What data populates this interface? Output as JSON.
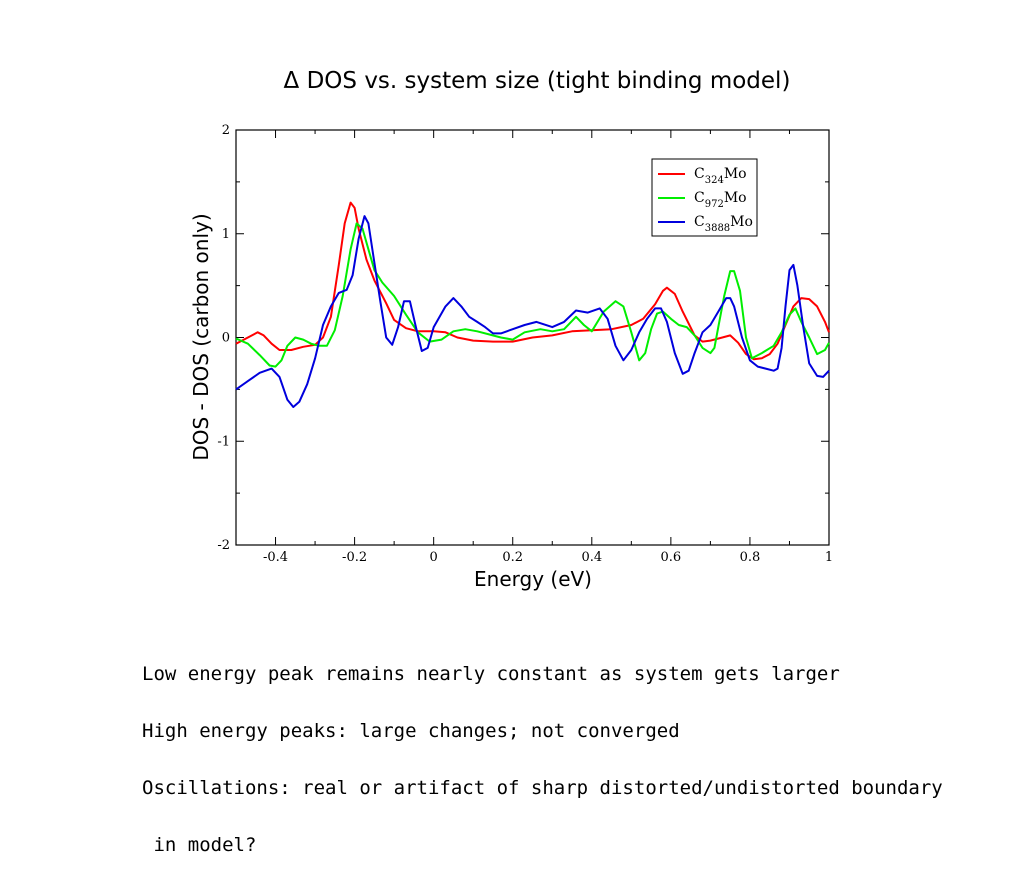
{
  "slide": {
    "notes": [
      "Low energy peak remains nearly constant as system gets larger",
      "High energy peaks: large changes; not converged",
      "Oscillations: real or artifact of sharp distorted/undistorted boundary",
      " in model?"
    ]
  },
  "chart_data": {
    "type": "line",
    "title": "Δ DOS vs. system size (tight binding model)",
    "xlabel": "Energy (eV)",
    "ylabel": "DOS - DOS (carbon only)",
    "xlim": [
      -0.5,
      1.0
    ],
    "ylim": [
      -2,
      2
    ],
    "xticks": [
      -0.4,
      -0.2,
      0,
      0.2,
      0.4,
      0.6,
      0.8,
      1.0
    ],
    "xtick_labels": [
      "-0.4",
      "-0.2",
      "0",
      "0.2",
      "0.4",
      "0.6",
      "0.8",
      "1"
    ],
    "yticks": [
      -2,
      -1,
      0,
      1,
      2
    ],
    "ytick_labels": [
      "-2",
      "-1",
      "0",
      "1",
      "2"
    ],
    "grid": false,
    "legend_position": "top-right",
    "series": [
      {
        "name": "C324Mo",
        "base": "C",
        "sub": "324",
        "suffix": "Mo",
        "color": "#ff0000",
        "points": [
          [
            -0.5,
            -0.06
          ],
          [
            -0.47,
            0.0
          ],
          [
            -0.445,
            0.05
          ],
          [
            -0.43,
            0.02
          ],
          [
            -0.41,
            -0.06
          ],
          [
            -0.39,
            -0.12
          ],
          [
            -0.36,
            -0.12
          ],
          [
            -0.33,
            -0.09
          ],
          [
            -0.3,
            -0.07
          ],
          [
            -0.28,
            0.0
          ],
          [
            -0.26,
            0.2
          ],
          [
            -0.24,
            0.7
          ],
          [
            -0.225,
            1.1
          ],
          [
            -0.21,
            1.3
          ],
          [
            -0.2,
            1.25
          ],
          [
            -0.19,
            1.05
          ],
          [
            -0.17,
            0.75
          ],
          [
            -0.15,
            0.55
          ],
          [
            -0.12,
            0.33
          ],
          [
            -0.1,
            0.17
          ],
          [
            -0.07,
            0.09
          ],
          [
            -0.04,
            0.06
          ],
          [
            0.0,
            0.06
          ],
          [
            0.03,
            0.05
          ],
          [
            0.06,
            0.0
          ],
          [
            0.1,
            -0.03
          ],
          [
            0.15,
            -0.04
          ],
          [
            0.2,
            -0.04
          ],
          [
            0.25,
            0.0
          ],
          [
            0.3,
            0.02
          ],
          [
            0.35,
            0.06
          ],
          [
            0.4,
            0.07
          ],
          [
            0.45,
            0.08
          ],
          [
            0.5,
            0.12
          ],
          [
            0.53,
            0.18
          ],
          [
            0.56,
            0.32
          ],
          [
            0.58,
            0.45
          ],
          [
            0.59,
            0.48
          ],
          [
            0.61,
            0.42
          ],
          [
            0.63,
            0.25
          ],
          [
            0.66,
            0.02
          ],
          [
            0.68,
            -0.04
          ],
          [
            0.7,
            -0.03
          ],
          [
            0.73,
            0.0
          ],
          [
            0.75,
            0.02
          ],
          [
            0.77,
            -0.05
          ],
          [
            0.79,
            -0.16
          ],
          [
            0.81,
            -0.21
          ],
          [
            0.83,
            -0.2
          ],
          [
            0.85,
            -0.16
          ],
          [
            0.87,
            -0.06
          ],
          [
            0.89,
            0.12
          ],
          [
            0.91,
            0.3
          ],
          [
            0.93,
            0.38
          ],
          [
            0.95,
            0.37
          ],
          [
            0.97,
            0.3
          ],
          [
            0.99,
            0.15
          ],
          [
            1.0,
            0.05
          ]
        ]
      },
      {
        "name": "C972Mo",
        "base": "C",
        "sub": "972",
        "suffix": "Mo",
        "color": "#00ee00",
        "points": [
          [
            -0.5,
            -0.01
          ],
          [
            -0.47,
            -0.06
          ],
          [
            -0.44,
            -0.17
          ],
          [
            -0.415,
            -0.27
          ],
          [
            -0.4,
            -0.28
          ],
          [
            -0.385,
            -0.22
          ],
          [
            -0.37,
            -0.08
          ],
          [
            -0.35,
            0.0
          ],
          [
            -0.33,
            -0.02
          ],
          [
            -0.31,
            -0.06
          ],
          [
            -0.29,
            -0.08
          ],
          [
            -0.27,
            -0.08
          ],
          [
            -0.25,
            0.07
          ],
          [
            -0.23,
            0.4
          ],
          [
            -0.21,
            0.85
          ],
          [
            -0.195,
            1.1
          ],
          [
            -0.18,
            1.05
          ],
          [
            -0.165,
            0.85
          ],
          [
            -0.15,
            0.65
          ],
          [
            -0.13,
            0.53
          ],
          [
            -0.1,
            0.4
          ],
          [
            -0.07,
            0.22
          ],
          [
            -0.04,
            0.05
          ],
          [
            -0.01,
            -0.04
          ],
          [
            0.02,
            -0.02
          ],
          [
            0.05,
            0.06
          ],
          [
            0.08,
            0.08
          ],
          [
            0.11,
            0.06
          ],
          [
            0.14,
            0.03
          ],
          [
            0.17,
            0.0
          ],
          [
            0.2,
            -0.02
          ],
          [
            0.23,
            0.05
          ],
          [
            0.27,
            0.08
          ],
          [
            0.3,
            0.06
          ],
          [
            0.33,
            0.08
          ],
          [
            0.36,
            0.2
          ],
          [
            0.38,
            0.12
          ],
          [
            0.4,
            0.06
          ],
          [
            0.43,
            0.25
          ],
          [
            0.46,
            0.35
          ],
          [
            0.48,
            0.3
          ],
          [
            0.5,
            0.05
          ],
          [
            0.52,
            -0.22
          ],
          [
            0.535,
            -0.15
          ],
          [
            0.55,
            0.08
          ],
          [
            0.565,
            0.23
          ],
          [
            0.58,
            0.25
          ],
          [
            0.6,
            0.18
          ],
          [
            0.62,
            0.12
          ],
          [
            0.64,
            0.1
          ],
          [
            0.66,
            0.02
          ],
          [
            0.68,
            -0.1
          ],
          [
            0.7,
            -0.15
          ],
          [
            0.71,
            -0.1
          ],
          [
            0.72,
            0.1
          ],
          [
            0.735,
            0.4
          ],
          [
            0.75,
            0.64
          ],
          [
            0.76,
            0.64
          ],
          [
            0.775,
            0.45
          ],
          [
            0.79,
            0.0
          ],
          [
            0.805,
            -0.2
          ],
          [
            0.83,
            -0.15
          ],
          [
            0.86,
            -0.08
          ],
          [
            0.88,
            0.05
          ],
          [
            0.9,
            0.22
          ],
          [
            0.915,
            0.28
          ],
          [
            0.93,
            0.15
          ],
          [
            0.95,
            0.0
          ],
          [
            0.97,
            -0.16
          ],
          [
            0.99,
            -0.12
          ],
          [
            1.0,
            -0.05
          ]
        ]
      },
      {
        "name": "C3888Mo",
        "base": "C",
        "sub": "3888",
        "suffix": "Mo",
        "color": "#0000dd",
        "points": [
          [
            -0.5,
            -0.5
          ],
          [
            -0.47,
            -0.42
          ],
          [
            -0.44,
            -0.34
          ],
          [
            -0.41,
            -0.3
          ],
          [
            -0.39,
            -0.38
          ],
          [
            -0.37,
            -0.6
          ],
          [
            -0.355,
            -0.67
          ],
          [
            -0.34,
            -0.62
          ],
          [
            -0.32,
            -0.45
          ],
          [
            -0.3,
            -0.2
          ],
          [
            -0.28,
            0.12
          ],
          [
            -0.26,
            0.3
          ],
          [
            -0.24,
            0.43
          ],
          [
            -0.22,
            0.46
          ],
          [
            -0.205,
            0.6
          ],
          [
            -0.19,
            0.95
          ],
          [
            -0.175,
            1.17
          ],
          [
            -0.165,
            1.1
          ],
          [
            -0.15,
            0.72
          ],
          [
            -0.135,
            0.35
          ],
          [
            -0.12,
            0.0
          ],
          [
            -0.105,
            -0.07
          ],
          [
            -0.09,
            0.1
          ],
          [
            -0.075,
            0.35
          ],
          [
            -0.06,
            0.35
          ],
          [
            -0.045,
            0.1
          ],
          [
            -0.03,
            -0.13
          ],
          [
            -0.015,
            -0.1
          ],
          [
            0.0,
            0.1
          ],
          [
            0.03,
            0.3
          ],
          [
            0.05,
            0.38
          ],
          [
            0.07,
            0.3
          ],
          [
            0.09,
            0.2
          ],
          [
            0.11,
            0.15
          ],
          [
            0.13,
            0.1
          ],
          [
            0.15,
            0.04
          ],
          [
            0.17,
            0.04
          ],
          [
            0.2,
            0.08
          ],
          [
            0.23,
            0.12
          ],
          [
            0.26,
            0.15
          ],
          [
            0.3,
            0.1
          ],
          [
            0.33,
            0.15
          ],
          [
            0.36,
            0.26
          ],
          [
            0.39,
            0.24
          ],
          [
            0.42,
            0.28
          ],
          [
            0.44,
            0.18
          ],
          [
            0.46,
            -0.08
          ],
          [
            0.48,
            -0.22
          ],
          [
            0.5,
            -0.12
          ],
          [
            0.52,
            0.05
          ],
          [
            0.54,
            0.18
          ],
          [
            0.56,
            0.28
          ],
          [
            0.575,
            0.28
          ],
          [
            0.59,
            0.15
          ],
          [
            0.61,
            -0.15
          ],
          [
            0.63,
            -0.35
          ],
          [
            0.645,
            -0.32
          ],
          [
            0.66,
            -0.15
          ],
          [
            0.68,
            0.05
          ],
          [
            0.7,
            0.12
          ],
          [
            0.72,
            0.25
          ],
          [
            0.74,
            0.38
          ],
          [
            0.75,
            0.38
          ],
          [
            0.76,
            0.3
          ],
          [
            0.78,
            0.0
          ],
          [
            0.8,
            -0.22
          ],
          [
            0.82,
            -0.28
          ],
          [
            0.84,
            -0.3
          ],
          [
            0.86,
            -0.32
          ],
          [
            0.87,
            -0.3
          ],
          [
            0.88,
            -0.1
          ],
          [
            0.89,
            0.3
          ],
          [
            0.9,
            0.65
          ],
          [
            0.91,
            0.7
          ],
          [
            0.92,
            0.5
          ],
          [
            0.935,
            0.1
          ],
          [
            0.95,
            -0.25
          ],
          [
            0.97,
            -0.37
          ],
          [
            0.985,
            -0.38
          ],
          [
            1.0,
            -0.32
          ]
        ]
      }
    ]
  }
}
